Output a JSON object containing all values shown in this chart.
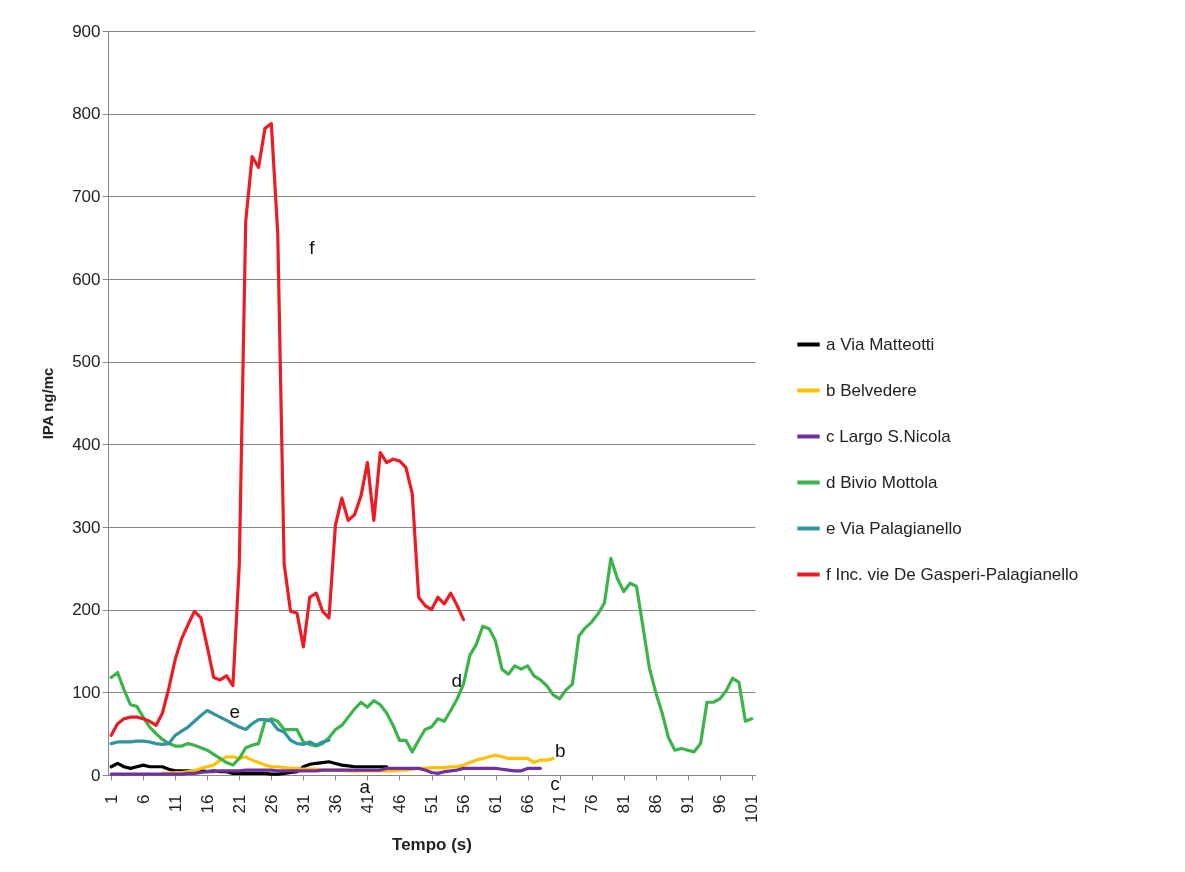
{
  "chart_data": {
    "type": "line",
    "xlabel": "Tempo (s)",
    "ylabel": "IPA ng/mc",
    "xlim": [
      0.5,
      101.5
    ],
    "xticks": [
      1,
      6,
      11,
      16,
      21,
      26,
      31,
      36,
      41,
      46,
      51,
      56,
      61,
      66,
      71,
      76,
      81,
      86,
      91,
      96,
      101
    ],
    "ylim": [
      0,
      900
    ],
    "yticks": [
      0,
      100,
      200,
      300,
      400,
      500,
      600,
      700,
      800,
      900
    ],
    "grid": "y",
    "legend": "right",
    "series": [
      {
        "name": "a Via Matteotti",
        "color": "#000000",
        "x": [
          1,
          2,
          3,
          4,
          5,
          6,
          7,
          8,
          9,
          10,
          11,
          12,
          13,
          14,
          15,
          16,
          17,
          18,
          19,
          20,
          21,
          22,
          23,
          24,
          25,
          26,
          27,
          28,
          29,
          30,
          31,
          32,
          33,
          34,
          35,
          36,
          37,
          38,
          39,
          40,
          41,
          42,
          43,
          44
        ],
        "values": [
          10,
          14,
          10,
          8,
          10,
          12,
          10,
          10,
          10,
          7,
          5,
          5,
          5,
          4,
          5,
          4,
          5,
          4,
          4,
          2,
          2,
          2,
          2,
          2,
          2,
          1,
          1,
          2,
          3,
          4,
          10,
          13,
          14,
          15,
          16,
          14,
          12,
          11,
          10,
          10,
          10,
          10,
          10,
          10
        ]
      },
      {
        "name": "b Belvedere",
        "color": "#ffc000",
        "x": [
          9,
          10,
          11,
          12,
          13,
          14,
          15,
          16,
          17,
          18,
          19,
          20,
          21,
          22,
          23,
          24,
          25,
          26,
          27,
          28,
          29,
          30,
          31,
          32,
          33,
          34,
          35,
          36,
          37,
          38,
          39,
          40,
          41,
          42,
          43,
          44,
          45,
          46,
          47,
          48,
          49,
          50,
          51,
          52,
          53,
          54,
          55,
          56,
          57,
          58,
          59,
          60,
          61,
          62,
          63,
          64,
          65,
          66,
          67,
          68,
          69,
          70
        ],
        "values": [
          2,
          2,
          3,
          3,
          4,
          5,
          8,
          10,
          12,
          18,
          22,
          22,
          20,
          22,
          18,
          15,
          12,
          10,
          10,
          9,
          8,
          8,
          7,
          7,
          7,
          6,
          6,
          6,
          6,
          5,
          5,
          5,
          5,
          5,
          5,
          5,
          5,
          6,
          6,
          7,
          8,
          8,
          9,
          9,
          9,
          10,
          10,
          12,
          15,
          18,
          20,
          22,
          24,
          22,
          20,
          20,
          20,
          20,
          15,
          18,
          18,
          20
        ]
      },
      {
        "name": "c Largo S.Nicola",
        "color": "#7030a0",
        "x": [
          1,
          2,
          3,
          4,
          5,
          6,
          7,
          8,
          9,
          10,
          11,
          12,
          13,
          14,
          15,
          16,
          17,
          18,
          19,
          20,
          21,
          22,
          23,
          24,
          25,
          26,
          27,
          28,
          29,
          30,
          31,
          32,
          33,
          34,
          35,
          36,
          37,
          38,
          39,
          40,
          41,
          42,
          43,
          44,
          45,
          46,
          47,
          48,
          49,
          50,
          51,
          52,
          53,
          54,
          55,
          56,
          57,
          58,
          59,
          60,
          61,
          62,
          63,
          64,
          65,
          66,
          67,
          68
        ],
        "values": [
          1,
          1,
          1,
          1,
          1,
          1,
          1,
          1,
          1,
          1,
          1,
          1,
          2,
          2,
          3,
          4,
          4,
          5,
          5,
          5,
          5,
          6,
          6,
          6,
          6,
          6,
          5,
          5,
          5,
          5,
          5,
          5,
          5,
          6,
          6,
          6,
          6,
          6,
          6,
          6,
          6,
          6,
          6,
          8,
          8,
          8,
          8,
          8,
          8,
          6,
          3,
          2,
          4,
          5,
          6,
          8,
          8,
          8,
          8,
          8,
          8,
          7,
          6,
          5,
          5,
          8,
          8,
          8
        ]
      },
      {
        "name": "d Bivio Mottola",
        "color": "#3cb44b",
        "x": [
          1,
          2,
          3,
          4,
          5,
          6,
          7,
          8,
          9,
          10,
          11,
          12,
          13,
          14,
          15,
          16,
          17,
          18,
          19,
          20,
          21,
          22,
          23,
          24,
          25,
          26,
          27,
          28,
          29,
          30,
          31,
          32,
          33,
          34,
          35,
          36,
          37,
          38,
          39,
          40,
          41,
          42,
          43,
          44,
          45,
          46,
          47,
          48,
          49,
          50,
          51,
          52,
          53,
          54,
          55,
          56,
          57,
          58,
          59,
          60,
          61,
          62,
          63,
          64,
          65,
          66,
          67,
          68,
          69,
          70,
          71,
          72,
          73,
          74,
          75,
          76,
          77,
          78,
          79,
          80,
          81,
          82,
          83,
          84,
          85,
          86,
          87,
          88,
          89,
          90,
          91,
          92,
          93,
          94,
          95,
          96,
          97,
          98,
          99,
          100,
          101
        ],
        "values": [
          118,
          124,
          103,
          85,
          83,
          70,
          58,
          50,
          43,
          38,
          35,
          35,
          38,
          36,
          33,
          30,
          25,
          20,
          15,
          12,
          20,
          33,
          36,
          38,
          65,
          68,
          65,
          55,
          55,
          55,
          40,
          37,
          35,
          38,
          45,
          55,
          60,
          70,
          80,
          88,
          82,
          90,
          85,
          75,
          60,
          42,
          42,
          28,
          42,
          55,
          58,
          68,
          65,
          78,
          92,
          110,
          145,
          158,
          180,
          177,
          162,
          128,
          122,
          132,
          128,
          132,
          120,
          115,
          108,
          97,
          92,
          103,
          110,
          168,
          178,
          185,
          195,
          208,
          262,
          238,
          222,
          232,
          228,
          180,
          130,
          100,
          75,
          45,
          30,
          32,
          30,
          28,
          38,
          88,
          88,
          92,
          102,
          117,
          112,
          65,
          68
        ]
      },
      {
        "name": "e Via Palagianello",
        "color": "#31949e",
        "x": [
          1,
          2,
          3,
          4,
          5,
          6,
          7,
          8,
          9,
          10,
          11,
          12,
          13,
          14,
          15,
          16,
          17,
          18,
          19,
          20,
          21,
          22,
          23,
          24,
          25,
          26,
          27,
          28,
          29,
          30,
          31,
          32,
          33,
          34,
          35
        ],
        "values": [
          38,
          40,
          40,
          40,
          41,
          41,
          40,
          38,
          37,
          38,
          48,
          53,
          58,
          65,
          72,
          78,
          74,
          70,
          66,
          62,
          58,
          55,
          62,
          67,
          67,
          65,
          55,
          52,
          42,
          38,
          37,
          40,
          36,
          40,
          42
        ]
      },
      {
        "name": "f Inc. vie De Gasperi-Palagianello",
        "color": "#ed1c24",
        "x": [
          1,
          2,
          3,
          4,
          5,
          6,
          7,
          8,
          9,
          10,
          11,
          12,
          13,
          14,
          15,
          16,
          17,
          18,
          19,
          20,
          21,
          22,
          23,
          24,
          25,
          26,
          27,
          28,
          29,
          30,
          31,
          32,
          33,
          34,
          35,
          36,
          37,
          38,
          39,
          40,
          41,
          42,
          43,
          44,
          45,
          46,
          47,
          48,
          49,
          50,
          51,
          52,
          53,
          54,
          55,
          56
        ],
        "values": [
          48,
          62,
          68,
          70,
          70,
          68,
          65,
          60,
          75,
          105,
          140,
          165,
          182,
          198,
          190,
          155,
          118,
          115,
          120,
          108,
          255,
          670,
          748,
          735,
          782,
          788,
          655,
          255,
          198,
          196,
          155,
          215,
          220,
          198,
          190,
          302,
          335,
          308,
          315,
          338,
          378,
          308,
          390,
          378,
          382,
          380,
          372,
          340,
          215,
          205,
          200,
          215,
          207,
          220,
          205,
          188
        ]
      }
    ],
    "annotations": [
      "a",
      "b",
      "c",
      "d",
      "e",
      "f"
    ]
  }
}
